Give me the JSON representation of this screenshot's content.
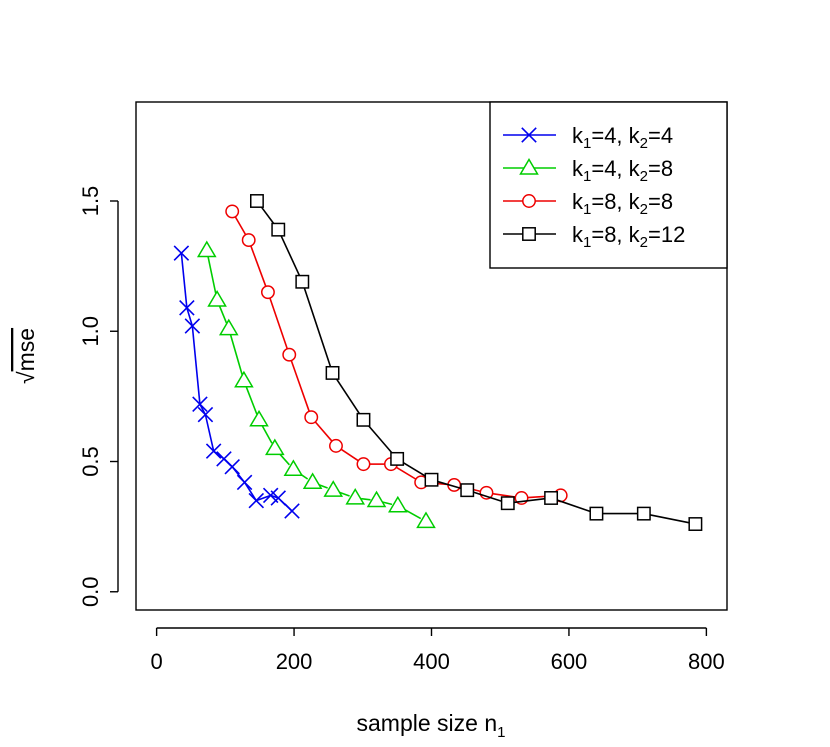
{
  "chart_data": {
    "type": "line",
    "xlabel": "sample size n",
    "xlabel_sub": "1",
    "ylabel": "mse",
    "ylabel_prefix": "√",
    "xlim": [
      -30,
      830
    ],
    "ylim": [
      -0.07,
      1.88
    ],
    "xticks": [
      0,
      200,
      400,
      600,
      800
    ],
    "yticks": [
      0.0,
      0.5,
      1.0,
      1.5
    ],
    "xtick_labels": [
      "0",
      "200",
      "400",
      "600",
      "800"
    ],
    "ytick_labels": [
      "0.0",
      "0.5",
      "1.0",
      "1.5"
    ],
    "grid": false,
    "legend_position": "top-right",
    "series": [
      {
        "name": "k1=4, k2=4",
        "legend_parts": [
          "k",
          "1",
          "=4, k",
          "2",
          "=4"
        ],
        "color": "#0000EE",
        "marker": "x",
        "points": [
          [
            36,
            1.3
          ],
          [
            44,
            1.09
          ],
          [
            52,
            1.02
          ],
          [
            63,
            0.72
          ],
          [
            71,
            0.68
          ],
          [
            83,
            0.54
          ],
          [
            98,
            0.51
          ],
          [
            110,
            0.48
          ],
          [
            128,
            0.42
          ],
          [
            145,
            0.35
          ],
          [
            166,
            0.37
          ],
          [
            177,
            0.36
          ],
          [
            197,
            0.31
          ]
        ]
      },
      {
        "name": "k1=4, k2=8",
        "legend_parts": [
          "k",
          "1",
          "=4, k",
          "2",
          "=8"
        ],
        "color": "#00CD00",
        "marker": "triangle",
        "points": [
          [
            73,
            1.31
          ],
          [
            88,
            1.12
          ],
          [
            105,
            1.01
          ],
          [
            127,
            0.81
          ],
          [
            149,
            0.66
          ],
          [
            172,
            0.55
          ],
          [
            199,
            0.47
          ],
          [
            227,
            0.42
          ],
          [
            257,
            0.39
          ],
          [
            289,
            0.36
          ],
          [
            320,
            0.35
          ],
          [
            351,
            0.33
          ],
          [
            392,
            0.27
          ]
        ]
      },
      {
        "name": "k1=8, k2=8",
        "legend_parts": [
          "k",
          "1",
          "=8, k",
          "2",
          "=8"
        ],
        "color": "#EE0000",
        "marker": "circle",
        "points": [
          [
            110,
            1.46
          ],
          [
            134,
            1.35
          ],
          [
            162,
            1.15
          ],
          [
            193,
            0.91
          ],
          [
            225,
            0.67
          ],
          [
            261,
            0.56
          ],
          [
            301,
            0.49
          ],
          [
            341,
            0.49
          ],
          [
            385,
            0.42
          ],
          [
            433,
            0.41
          ],
          [
            480,
            0.38
          ],
          [
            531,
            0.36
          ],
          [
            588,
            0.37
          ]
        ]
      },
      {
        "name": "k1=8, k2=12",
        "legend_parts": [
          "k",
          "1",
          "=8, k",
          "2",
          "=12"
        ],
        "color": "#000000",
        "marker": "square",
        "points": [
          [
            146,
            1.5
          ],
          [
            177,
            1.39
          ],
          [
            212,
            1.19
          ],
          [
            256,
            0.84
          ],
          [
            301,
            0.66
          ],
          [
            350,
            0.51
          ],
          [
            400,
            0.43
          ],
          [
            452,
            0.39
          ],
          [
            511,
            0.34
          ],
          [
            574,
            0.36
          ],
          [
            640,
            0.3
          ],
          [
            709,
            0.3
          ],
          [
            784,
            0.26
          ]
        ]
      }
    ]
  }
}
